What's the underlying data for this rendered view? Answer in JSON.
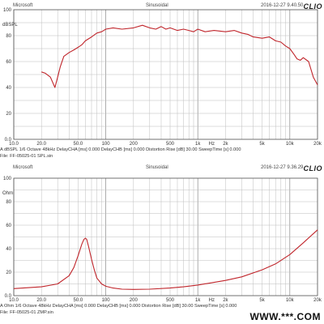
{
  "chart_data": [
    {
      "type": "line",
      "header": {
        "left": "Microsoft",
        "center": "Sinusoidal",
        "right": "2016-12-27 9.40.50",
        "logo": "CLIO"
      },
      "y_unit": "dBSPL",
      "yscale": "linear",
      "xscale": "log",
      "ylim": [
        0,
        100
      ],
      "xlim": [
        10,
        20000
      ],
      "y_ticks": [
        "0.0",
        "20",
        "40",
        "60",
        "80",
        "100"
      ],
      "x_ticks": [
        "10.0",
        "20.0",
        "50.0",
        "100",
        "200",
        "500",
        "1k",
        "2k",
        "5k",
        "10k",
        "20k"
      ],
      "x_unit": "Hz",
      "grid": true,
      "series_color": "#c0252b",
      "x": [
        20,
        22,
        25,
        28,
        30,
        32,
        35,
        40,
        45,
        50,
        55,
        60,
        70,
        80,
        90,
        100,
        120,
        150,
        200,
        250,
        300,
        350,
        400,
        450,
        500,
        600,
        700,
        800,
        900,
        1000,
        1200,
        1500,
        2000,
        2500,
        3000,
        3500,
        4000,
        5000,
        6000,
        7000,
        8000,
        9000,
        10000,
        11000,
        12000,
        13000,
        14000,
        16000,
        18000,
        20000
      ],
      "y": [
        52,
        51,
        48,
        40,
        48,
        56,
        64,
        67,
        69,
        71,
        73,
        76,
        79,
        82,
        83,
        85,
        86,
        85,
        86,
        88,
        86,
        85,
        87,
        85,
        86,
        84,
        85,
        84,
        83,
        85,
        83,
        84,
        83,
        84,
        82,
        81,
        79,
        78,
        79,
        76,
        75,
        72,
        70,
        66,
        62,
        61,
        63,
        60,
        48,
        42
      ],
      "footer": "A  dBSPL    1/6 Octave    48kHz    DelayCHA [ms] 0.000        DelayCHB [ms] 0.000     Distortion Rise [dB] 30.00      SweepTime [s] 0.000",
      "file": "File: FF-05025-01 SPL.sin"
    },
    {
      "type": "line",
      "header": {
        "left": "Microsoft",
        "center": "Sinusoidal",
        "right": "2016-12-27 9.36.29",
        "logo": "CLIO"
      },
      "y_unit": "Ohm",
      "yscale": "linear",
      "xscale": "log",
      "ylim": [
        0,
        100
      ],
      "xlim": [
        10,
        20000
      ],
      "y_ticks": [
        "0.0",
        "20",
        "40",
        "60",
        "80",
        "100"
      ],
      "x_ticks": [
        "10.0",
        "20.0",
        "50.0",
        "100",
        "200",
        "500",
        "1k",
        "2k",
        "5k",
        "10k",
        "20k"
      ],
      "x_unit": "Hz",
      "grid": true,
      "series_color": "#c0252b",
      "x": [
        10,
        20,
        30,
        40,
        45,
        50,
        55,
        58,
        60,
        62,
        65,
        70,
        75,
        80,
        90,
        100,
        120,
        150,
        200,
        300,
        500,
        700,
        1000,
        2000,
        3000,
        5000,
        7000,
        10000,
        14000,
        20000
      ],
      "y": [
        6,
        7.5,
        10,
        17,
        24,
        34,
        44,
        48,
        49,
        48,
        42,
        31,
        22,
        15,
        10,
        8,
        6.5,
        5.5,
        5.3,
        5.5,
        6.5,
        7.5,
        9,
        13,
        16,
        22,
        27,
        35,
        45,
        56
      ],
      "footer": "A  Ohm    1/6 Octave    48kHz    DelayCHA [ms] 0.000        DelayCHB [ms] 0.000     Distortion Rise [dB] 30.00      SweepTime [s] 0.000",
      "file": "File: FF-05025-01 ZMP.sin"
    }
  ],
  "watermark": "WWW.***.COM"
}
